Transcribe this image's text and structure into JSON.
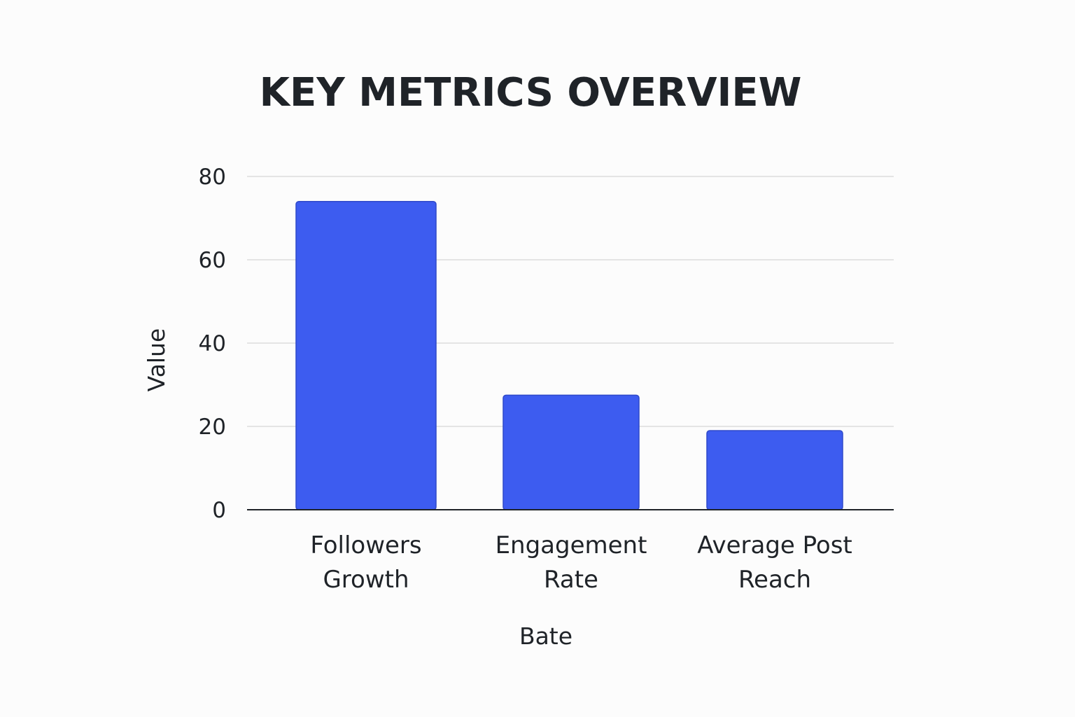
{
  "chart_data": {
    "type": "bar",
    "title": "KEY METRICS OVERVIEW",
    "xlabel": "Bate",
    "ylabel": "Value",
    "categories": [
      [
        "Followers",
        "Growth"
      ],
      [
        "Engagement",
        "Rate"
      ],
      [
        "Average Post",
        "Reach"
      ]
    ],
    "values": [
      74,
      27.5,
      19
    ],
    "ylim": [
      0,
      80
    ],
    "yticks": [
      0,
      20,
      40,
      60,
      80
    ],
    "grid": true,
    "bar_color": "#3d5cf0",
    "bar_border_color": "#2f49c9"
  }
}
